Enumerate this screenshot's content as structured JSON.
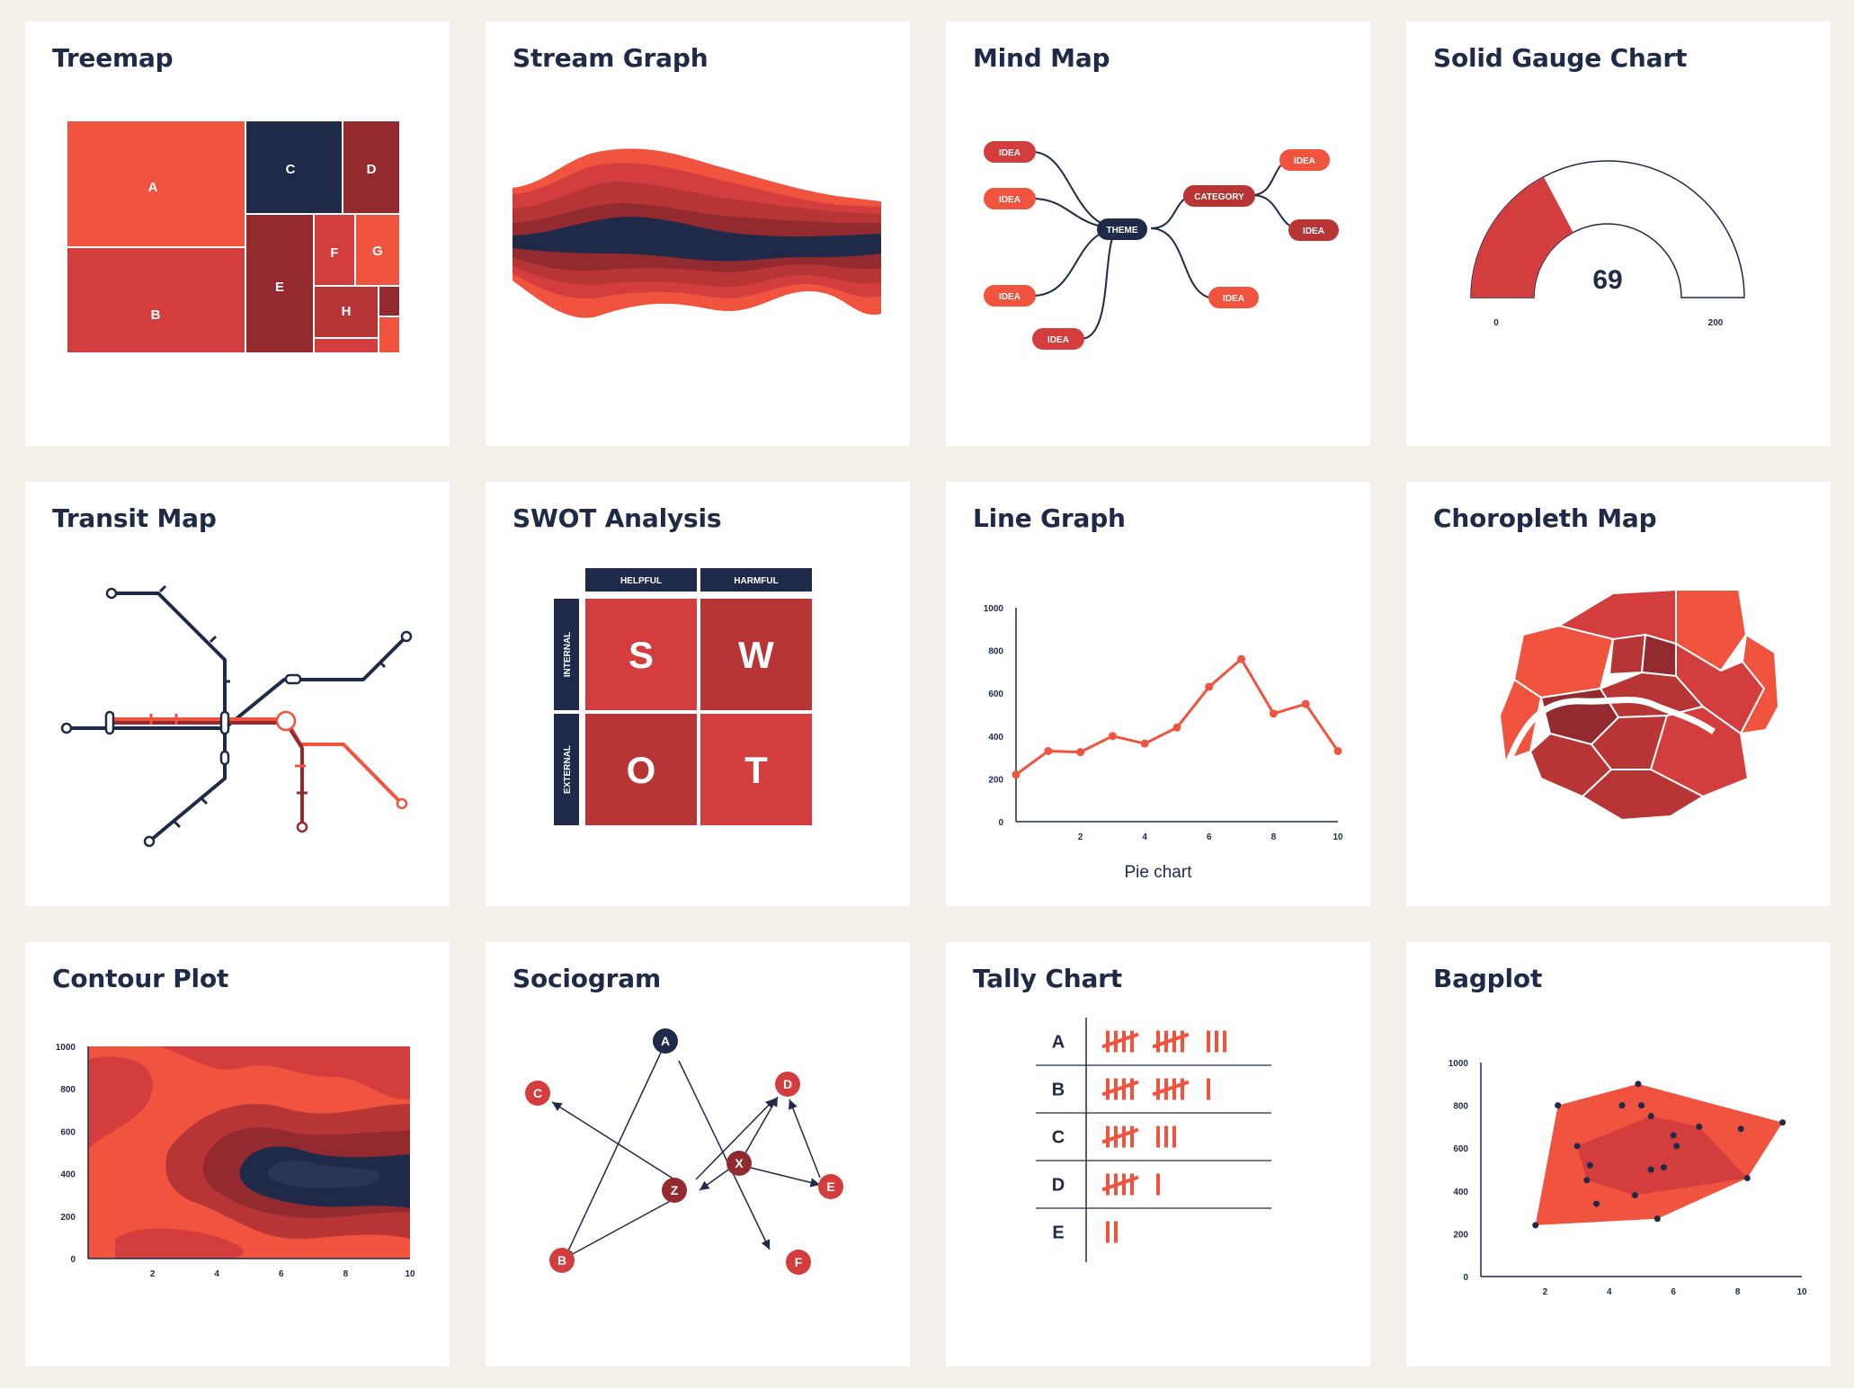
{
  "colors": {
    "red": "#f0543e",
    "mid": "#d43d3d",
    "dark": "#922a2f",
    "navy": "#1f2a48",
    "grid": "#1f2a48"
  },
  "cards": {
    "treemap": {
      "title": "Treemap",
      "cells": [
        "A",
        "B",
        "C",
        "D",
        "E",
        "F",
        "G",
        "H"
      ]
    },
    "stream": {
      "title": "Stream Graph"
    },
    "mindmap": {
      "title": "Mind Map",
      "center": "THEME",
      "category": "CATEGORY",
      "idea": "IDEA"
    },
    "gauge": {
      "title": "Solid Gauge Chart",
      "value": 69,
      "value_label": "69",
      "min": 0,
      "max": 200,
      "min_label": "0",
      "max_label": "200"
    },
    "transit": {
      "title": "Transit Map"
    },
    "swot": {
      "title": "SWOT Analysis",
      "col_helpful": "HELPFUL",
      "col_harmful": "HARMFUL",
      "row_internal": "INTERNAL",
      "row_external": "EXTERNAL",
      "s": "S",
      "w": "W",
      "o": "O",
      "t": "T"
    },
    "line": {
      "title": "Line Graph",
      "caption": "Pie chart"
    },
    "choropleth": {
      "title": "Choropleth Map"
    },
    "contour": {
      "title": "Contour Plot"
    },
    "sociogram": {
      "title": "Sociogram",
      "nodes": [
        "A",
        "C",
        "D",
        "X",
        "Z",
        "E",
        "B",
        "F"
      ]
    },
    "tally": {
      "title": "Tally Chart",
      "rows": [
        {
          "label": "A",
          "count": 13
        },
        {
          "label": "B",
          "count": 11
        },
        {
          "label": "C",
          "count": 8
        },
        {
          "label": "D",
          "count": 6
        },
        {
          "label": "E",
          "count": 2
        }
      ]
    },
    "bagplot": {
      "title": "Bagplot"
    }
  },
  "chart_data": [
    {
      "type": "line",
      "x": [
        0,
        1,
        2,
        3,
        4,
        5,
        6,
        7,
        8,
        9,
        10
      ],
      "values": [
        220,
        330,
        325,
        400,
        365,
        440,
        630,
        760,
        505,
        550,
        330
      ],
      "xlim": [
        0,
        10
      ],
      "ylim": [
        0,
        1000
      ],
      "x_ticks": [
        "2",
        "4",
        "6",
        "8",
        "10"
      ],
      "y_ticks": [
        "0",
        "200",
        "400",
        "600",
        "800",
        "1000"
      ],
      "xlabel": "Pie chart"
    },
    {
      "type": "heatmap",
      "xlim": [
        0,
        10
      ],
      "ylim": [
        0,
        1000
      ],
      "x_ticks": [
        "2",
        "4",
        "6",
        "8",
        "10"
      ],
      "y_ticks": [
        "0",
        "200",
        "400",
        "600",
        "800",
        "1000"
      ]
    },
    {
      "type": "scatter",
      "x": [
        2.4,
        3.0,
        3.4,
        3.3,
        4.4,
        4.9,
        5.3,
        5.0,
        6.8,
        6.1,
        6.0,
        5.7,
        8.1,
        8.3,
        9.4,
        5.3,
        5.5,
        4.8,
        3.6,
        1.7
      ],
      "values": [
        800,
        610,
        520,
        450,
        800,
        900,
        750,
        800,
        700,
        610,
        660,
        510,
        690,
        460,
        720,
        500,
        270,
        380,
        340,
        240
      ],
      "xlim": [
        0,
        10
      ],
      "ylim": [
        0,
        1000
      ],
      "x_ticks": [
        "2",
        "4",
        "6",
        "8",
        "10"
      ],
      "y_ticks": [
        "0",
        "200",
        "400",
        "600",
        "800",
        "1000"
      ]
    },
    {
      "type": "pie",
      "name": "gauge",
      "value": 69,
      "min": 0,
      "max": 200
    }
  ]
}
